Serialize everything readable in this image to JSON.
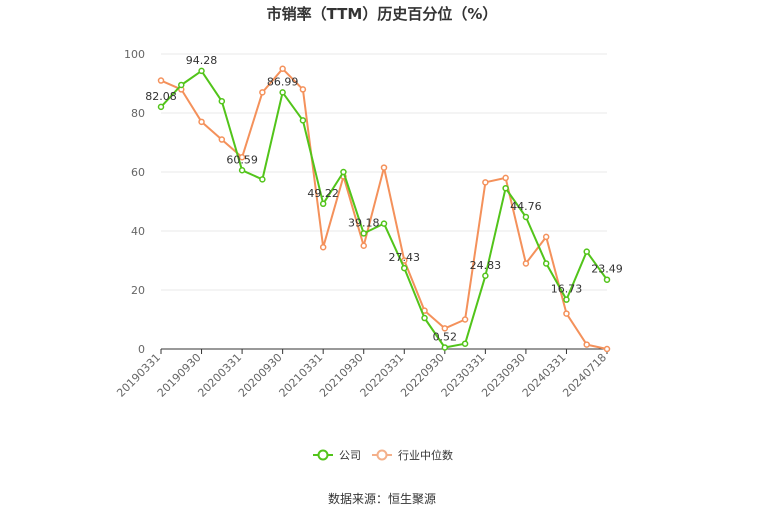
{
  "chart_data": {
    "type": "line",
    "title": "市销率（TTM）历史百分位（%）",
    "ylim": [
      0,
      100
    ],
    "yticks": [
      0,
      20,
      40,
      60,
      80,
      100
    ],
    "x_tick_labels": [
      "20190331",
      "20190930",
      "20200331",
      "20200930",
      "20210331",
      "20210930",
      "20220331",
      "20220930",
      "20230331",
      "20230930",
      "20240331",
      "20240718"
    ],
    "x": [
      "20190331",
      "20190630",
      "20190930",
      "20191231",
      "20200331",
      "20200630",
      "20200930",
      "20201231",
      "20210331",
      "20210630",
      "20210930",
      "20211231",
      "20220331",
      "20220630",
      "20220930",
      "20221231",
      "20230331",
      "20230630",
      "20230930",
      "20231231",
      "20240331",
      "20240630",
      "20240718"
    ],
    "grid": true,
    "legend_position": "bottom",
    "series": [
      {
        "name": "公司",
        "color": "#52c41a",
        "values": [
          82.08,
          89.5,
          94.28,
          84.0,
          60.59,
          57.5,
          86.99,
          77.5,
          49.22,
          60.0,
          39.18,
          42.5,
          27.43,
          10.5,
          0.52,
          1.8,
          24.83,
          54.5,
          44.76,
          29.0,
          16.73,
          33.0,
          23.49
        ],
        "labels": {
          "0": "82.08",
          "2": "94.28",
          "4": "60.59",
          "6": "86.99",
          "8": "49.22",
          "10": "39.18",
          "12": "27.43",
          "14": "0.52",
          "16": "24.83",
          "18": "44.76",
          "20": "16.73",
          "22": "23.49"
        }
      },
      {
        "name": "行业中位数",
        "color": "#f4915b",
        "values": [
          91.0,
          88.0,
          77.0,
          71.0,
          65.0,
          87.0,
          95.0,
          88.0,
          34.5,
          58.5,
          35.0,
          61.5,
          30.0,
          13.0,
          7.0,
          10.0,
          56.5,
          58.0,
          29.0,
          38.0,
          12.0,
          1.5,
          0.0
        ]
      }
    ]
  },
  "source_text": "数据来源：恒生聚源"
}
